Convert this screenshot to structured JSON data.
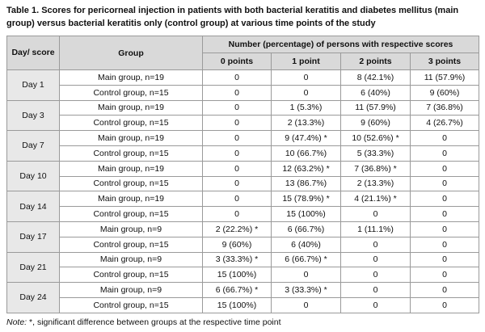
{
  "caption": "Table 1. Scores for pericorneal injection in patients with both bacterial keratitis and diabetes mellitus (main group) versus bacterial keratitis only (control group) at various time points of the study",
  "table": {
    "header": {
      "day": "Day/ score",
      "group": "Group",
      "span": "Number (percentage) of persons with respective scores",
      "scores": [
        "0 points",
        "1 point",
        "2 points",
        "3 points"
      ]
    },
    "rows": [
      {
        "day": "Day 1",
        "groups": [
          {
            "group": "Main group, n=19",
            "cells": [
              "0",
              "0",
              "8 (42.1%)",
              "11 (57.9%)"
            ]
          },
          {
            "group": "Control group, n=15",
            "cells": [
              "0",
              "0",
              "6 (40%)",
              "9 (60%)"
            ]
          }
        ]
      },
      {
        "day": "Day 3",
        "groups": [
          {
            "group": "Main group, n=19",
            "cells": [
              "0",
              "1 (5.3%)",
              "11 (57.9%)",
              "7 (36.8%)"
            ]
          },
          {
            "group": "Control group, n=15",
            "cells": [
              "0",
              "2 (13.3%)",
              "9 (60%)",
              "4 (26.7%)"
            ]
          }
        ]
      },
      {
        "day": "Day 7",
        "groups": [
          {
            "group": "Main group, n=19",
            "cells": [
              "0",
              "9 (47.4%) *",
              "10 (52.6%) *",
              "0"
            ]
          },
          {
            "group": "Control group, n=15",
            "cells": [
              "0",
              "10 (66.7%)",
              "5 (33.3%)",
              "0"
            ]
          }
        ]
      },
      {
        "day": "Day 10",
        "groups": [
          {
            "group": "Main group, n=19",
            "cells": [
              "0",
              "12 (63.2%) *",
              "7 (36.8%) *",
              "0"
            ]
          },
          {
            "group": "Control group, n=15",
            "cells": [
              "0",
              "13 (86.7%)",
              "2 (13.3%)",
              "0"
            ]
          }
        ]
      },
      {
        "day": "Day 14",
        "groups": [
          {
            "group": "Main group, n=19",
            "cells": [
              "0",
              "15 (78.9%) *",
              "4 (21.1%) *",
              "0"
            ]
          },
          {
            "group": "Control group, n=15",
            "cells": [
              "0",
              "15 (100%)",
              "0",
              "0"
            ]
          }
        ]
      },
      {
        "day": "Day 17",
        "groups": [
          {
            "group": "Main group, n=9",
            "cells": [
              "2 (22.2%) *",
              "6 (66.7%)",
              "1 (11.1%)",
              "0"
            ]
          },
          {
            "group": "Control group, n=15",
            "cells": [
              "9 (60%)",
              "6 (40%)",
              "0",
              "0"
            ]
          }
        ]
      },
      {
        "day": "Day 21",
        "groups": [
          {
            "group": "Main group, n=9",
            "cells": [
              "3 (33.3%) *",
              "6 (66.7%) *",
              "0",
              "0"
            ]
          },
          {
            "group": "Control group, n=15",
            "cells": [
              "15 (100%)",
              "0",
              "0",
              "0"
            ]
          }
        ]
      },
      {
        "day": "Day 24",
        "groups": [
          {
            "group": "Main group, n=9",
            "cells": [
              "6 (66.7%) *",
              "3 (33.3%) *",
              "0",
              "0"
            ]
          },
          {
            "group": "Control group, n=15",
            "cells": [
              "15 (100%)",
              "0",
              "0",
              "0"
            ]
          }
        ]
      }
    ]
  },
  "note": {
    "label": "Note:",
    "text": "*, significant difference between groups at the respective time point"
  }
}
